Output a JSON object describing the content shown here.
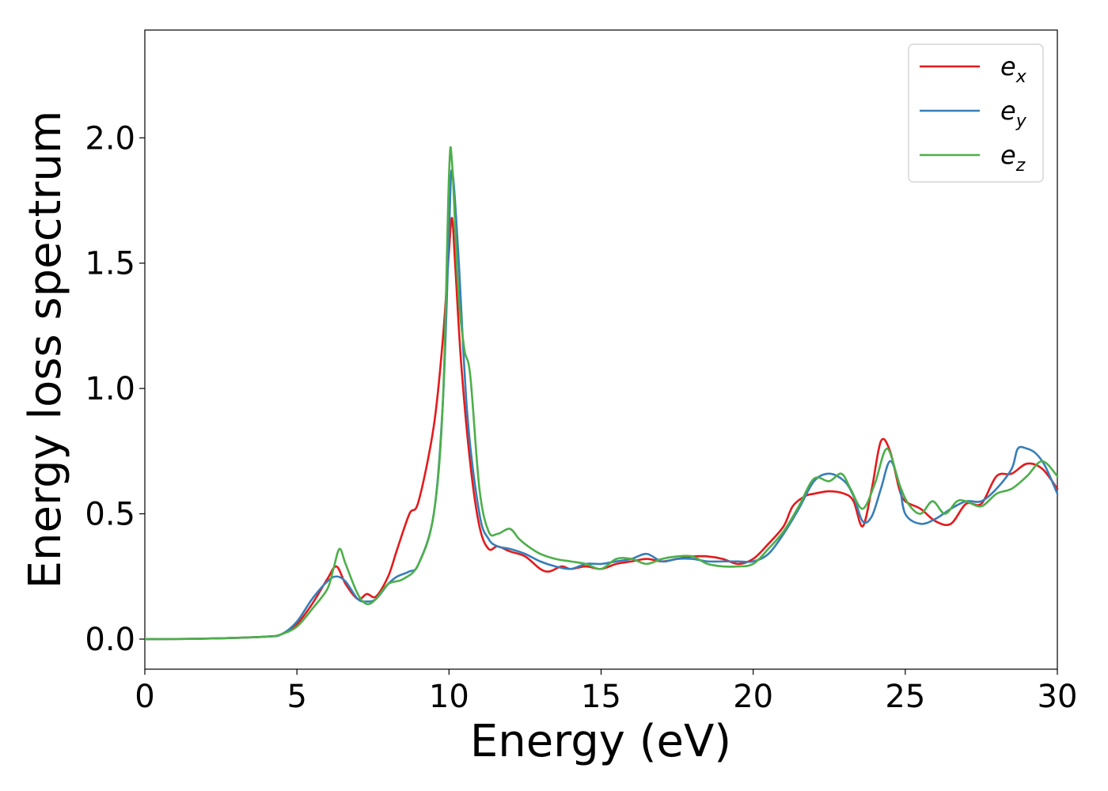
{
  "chart_data": {
    "type": "line",
    "title": "",
    "xlabel": "Energy (eV)",
    "ylabel": "Energy loss spectrum",
    "xlim": [
      0,
      30
    ],
    "ylim": [
      -0.12,
      2.43
    ],
    "xticks": [
      "0",
      "5",
      "10",
      "15",
      "20",
      "25",
      "30"
    ],
    "xtick_values": [
      0,
      5,
      10,
      15,
      20,
      25,
      30
    ],
    "yticks": [
      "0.0",
      "0.5",
      "1.0",
      "1.5",
      "2.0"
    ],
    "ytick_values": [
      0,
      0.5,
      1.0,
      1.5,
      2.0
    ],
    "grid": false,
    "legend_position": "top-right",
    "series": [
      {
        "name": "e_x",
        "legend_base": "e",
        "legend_sub": "x",
        "color": "#e41a1c",
        "x": [
          0,
          2,
          4,
          4.5,
          5,
          5.5,
          6,
          6.3,
          6.6,
          7,
          7.3,
          7.6,
          8,
          8.3,
          8.7,
          9,
          9.5,
          9.8,
          10,
          10.1,
          10.2,
          10.4,
          10.7,
          11,
          11.3,
          11.6,
          12,
          12.5,
          13,
          13.3,
          13.7,
          14,
          14.5,
          15,
          15.5,
          16,
          16.5,
          17,
          17.5,
          18,
          18.5,
          19,
          19.5,
          20,
          20.5,
          21,
          21.3,
          21.7,
          22,
          22.5,
          23,
          23.3,
          23.6,
          23.9,
          24.2,
          24.5,
          24.8,
          25,
          25.5,
          26,
          26.5,
          27,
          27.5,
          28,
          28.5,
          29,
          29.5,
          30
        ],
        "y": [
          0.0,
          0.002,
          0.01,
          0.02,
          0.06,
          0.14,
          0.24,
          0.29,
          0.22,
          0.16,
          0.18,
          0.17,
          0.25,
          0.36,
          0.5,
          0.55,
          0.85,
          1.2,
          1.55,
          1.68,
          1.5,
          1.1,
          0.7,
          0.45,
          0.36,
          0.37,
          0.35,
          0.33,
          0.28,
          0.27,
          0.29,
          0.28,
          0.29,
          0.28,
          0.3,
          0.31,
          0.32,
          0.31,
          0.32,
          0.33,
          0.33,
          0.32,
          0.3,
          0.32,
          0.38,
          0.45,
          0.53,
          0.57,
          0.58,
          0.59,
          0.58,
          0.55,
          0.45,
          0.6,
          0.79,
          0.75,
          0.6,
          0.55,
          0.52,
          0.47,
          0.46,
          0.54,
          0.54,
          0.65,
          0.66,
          0.7,
          0.68,
          0.6
        ]
      },
      {
        "name": "e_y",
        "legend_base": "e",
        "legend_sub": "y",
        "color": "#377eb8",
        "x": [
          0,
          2,
          4,
          4.5,
          5,
          5.5,
          6,
          6.3,
          6.6,
          7,
          7.3,
          7.6,
          8,
          8.3,
          8.7,
          9,
          9.5,
          9.8,
          10,
          10.1,
          10.3,
          10.6,
          11,
          11.3,
          11.6,
          12,
          12.5,
          13,
          13.5,
          14,
          14.5,
          15,
          15.5,
          16,
          16.5,
          17,
          17.5,
          18,
          18.5,
          19,
          19.5,
          20,
          20.5,
          21,
          21.5,
          22,
          22.5,
          23,
          23.3,
          23.6,
          23.9,
          24.2,
          24.5,
          24.8,
          25,
          25.5,
          26,
          26.5,
          27,
          27.5,
          28,
          28.5,
          28.7,
          29,
          29.3,
          29.6,
          30
        ],
        "y": [
          0.0,
          0.002,
          0.01,
          0.02,
          0.07,
          0.16,
          0.23,
          0.25,
          0.23,
          0.16,
          0.15,
          0.16,
          0.22,
          0.25,
          0.27,
          0.3,
          0.5,
          0.95,
          1.62,
          1.87,
          1.55,
          0.9,
          0.5,
          0.4,
          0.37,
          0.36,
          0.34,
          0.31,
          0.29,
          0.28,
          0.3,
          0.3,
          0.31,
          0.32,
          0.34,
          0.31,
          0.32,
          0.32,
          0.31,
          0.31,
          0.31,
          0.31,
          0.34,
          0.42,
          0.52,
          0.63,
          0.66,
          0.63,
          0.57,
          0.47,
          0.49,
          0.6,
          0.71,
          0.62,
          0.5,
          0.46,
          0.48,
          0.52,
          0.55,
          0.55,
          0.6,
          0.68,
          0.76,
          0.76,
          0.74,
          0.69,
          0.58
        ]
      },
      {
        "name": "e_z",
        "legend_base": "e",
        "legend_sub": "z",
        "color": "#4daf4a",
        "x": [
          0,
          2,
          4,
          4.5,
          5,
          5.5,
          6,
          6.2,
          6.4,
          6.6,
          7,
          7.3,
          7.6,
          8,
          8.5,
          9,
          9.5,
          9.8,
          10,
          10.1,
          10.3,
          10.5,
          10.7,
          11,
          11.3,
          11.6,
          12,
          12.3,
          12.6,
          13,
          13.5,
          14,
          14.5,
          15,
          15.5,
          16,
          16.5,
          17,
          17.5,
          18,
          18.5,
          19,
          19.5,
          20,
          20.5,
          21,
          21.5,
          22,
          22.5,
          22.9,
          23.2,
          23.6,
          24,
          24.4,
          24.8,
          25.1,
          25.5,
          25.9,
          26.3,
          26.7,
          27,
          27.5,
          28,
          28.5,
          29,
          29.5,
          30
        ],
        "y": [
          0.0,
          0.002,
          0.01,
          0.02,
          0.05,
          0.12,
          0.2,
          0.28,
          0.36,
          0.3,
          0.18,
          0.14,
          0.16,
          0.22,
          0.24,
          0.3,
          0.5,
          0.95,
          1.85,
          1.9,
          1.4,
          1.16,
          1.05,
          0.6,
          0.43,
          0.42,
          0.44,
          0.4,
          0.37,
          0.34,
          0.32,
          0.31,
          0.3,
          0.28,
          0.32,
          0.32,
          0.3,
          0.32,
          0.33,
          0.33,
          0.3,
          0.29,
          0.29,
          0.3,
          0.36,
          0.43,
          0.53,
          0.64,
          0.63,
          0.66,
          0.6,
          0.52,
          0.62,
          0.76,
          0.62,
          0.54,
          0.5,
          0.55,
          0.5,
          0.55,
          0.55,
          0.53,
          0.58,
          0.6,
          0.65,
          0.71,
          0.65
        ]
      }
    ]
  }
}
